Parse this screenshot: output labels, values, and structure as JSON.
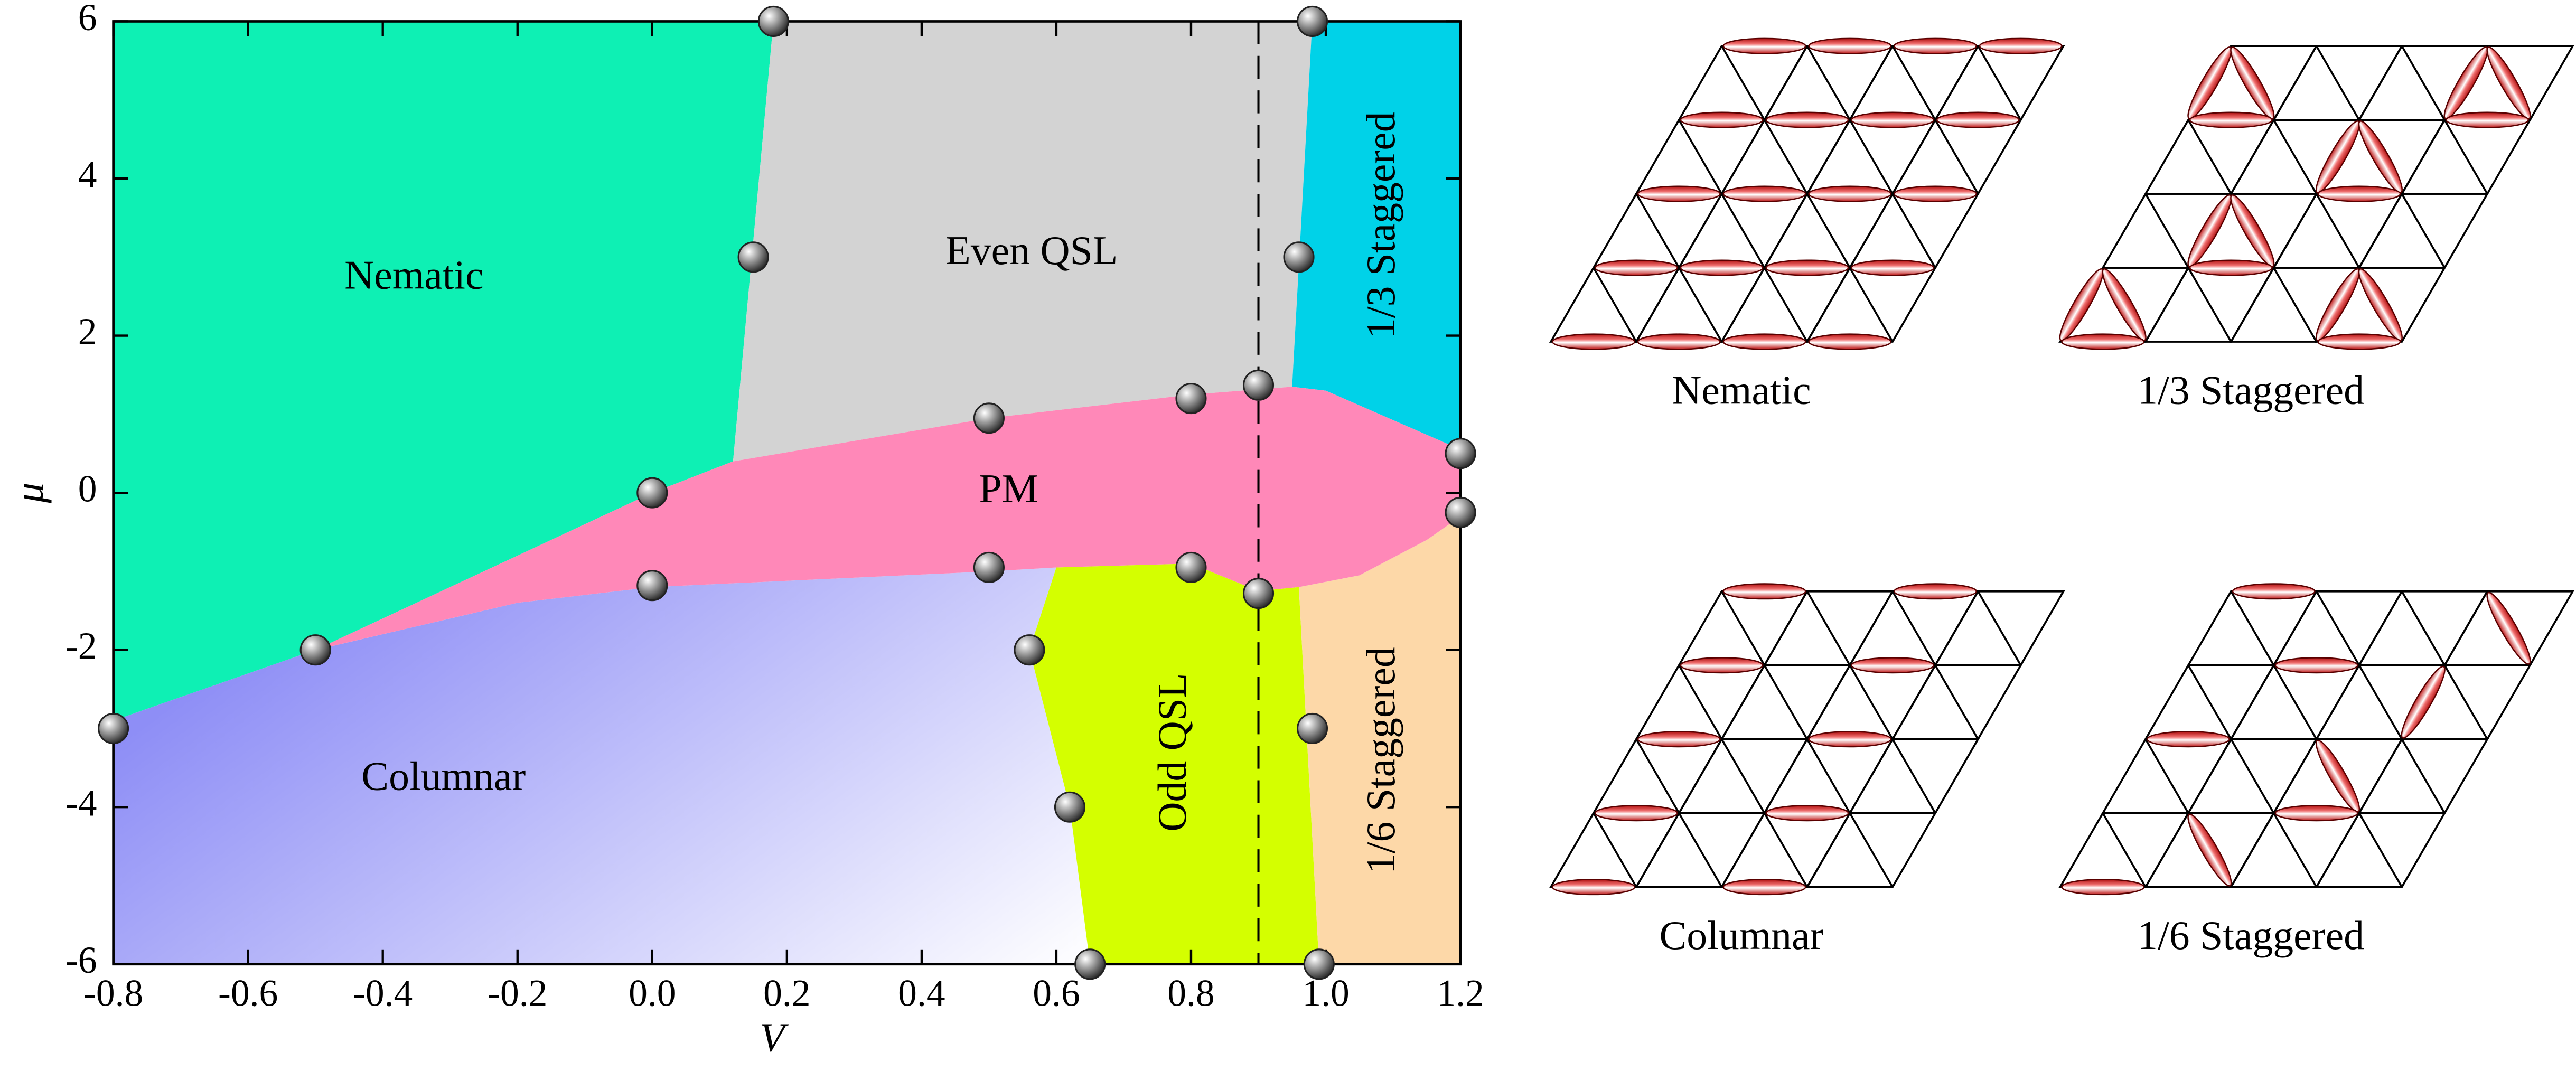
{
  "chart_data": {
    "type": "phase",
    "xlabel": "V",
    "ylabel": "μ",
    "xlim": [
      -0.8,
      1.2
    ],
    "ylim": [
      -6,
      6
    ],
    "xticks": [
      -0.8,
      -0.6,
      -0.4,
      -0.2,
      {
        "value": 0,
        "label": "0.0"
      },
      0.2,
      0.4,
      0.6,
      0.8,
      {
        "value": 1,
        "label": "1.0"
      },
      1.2
    ],
    "yticks": [
      -6,
      -4,
      -2,
      0,
      2,
      4,
      6
    ],
    "vline_x": 0.9,
    "regions": [
      {
        "name": "Nematic",
        "color": "#0ef0b4",
        "x": [
          -0.8,
          0.18,
          0.12,
          0,
          -0.5,
          -0.8
        ],
        "y": [
          6,
          6,
          0.4,
          0,
          -2,
          -2.9
        ]
      },
      {
        "name": "Even QSL",
        "color": "#d3d3d3",
        "x": [
          0.18,
          0.98,
          0.95,
          0.8,
          0.5,
          0.12
        ],
        "y": [
          6,
          6,
          1.35,
          1.25,
          0.95,
          0.4
        ]
      },
      {
        "name": "1/3 Staggered",
        "color": "#00d2e8",
        "x": [
          0.98,
          1.2,
          1.2,
          1.0,
          0.95
        ],
        "y": [
          6,
          6,
          0.55,
          1.3,
          1.35
        ]
      },
      {
        "name": "Columnar",
        "color": "#8e8ef6",
        "x": [
          -0.8,
          -0.5,
          -0.2,
          0,
          0.5,
          0.6,
          0.56,
          0.62,
          0.65,
          -0.8
        ],
        "y": [
          -2.9,
          -2,
          -1.4,
          -1.2,
          -1.0,
          -0.95,
          -2,
          -4,
          -6,
          -6
        ]
      },
      {
        "name": "Odd QSL",
        "color": "#d4ff00",
        "x": [
          0.6,
          0.8,
          0.9,
          0.96,
          0.99,
          0.65,
          0.62,
          0.56
        ],
        "y": [
          -0.95,
          -0.9,
          -1.25,
          -1.2,
          -6,
          -6,
          -4,
          -2
        ]
      },
      {
        "name": "1/6 Staggered",
        "color": "#fdd8a8",
        "x": [
          0.96,
          1.05,
          1.15,
          1.2,
          1.2,
          0.99
        ],
        "y": [
          -1.2,
          -1.05,
          -0.6,
          -0.3,
          -6,
          -6
        ]
      },
      {
        "name": "PM",
        "color": "#ff88b8",
        "x": [
          -0.5,
          0,
          0.12,
          0.5,
          0.8,
          0.95,
          1.0,
          1.2,
          1.2,
          1.15,
          1.05,
          0.96,
          0.9,
          0.8,
          0.6,
          0.5,
          0,
          -0.2
        ],
        "y": [
          -2,
          0,
          0.4,
          0.95,
          1.25,
          1.35,
          1.3,
          0.55,
          -0.3,
          -0.6,
          -1.05,
          -1.2,
          -1.25,
          -0.9,
          -0.95,
          -1.0,
          -1.2,
          -1.4
        ]
      }
    ],
    "points": {
      "x": [
        0.18,
        0.98,
        0.15,
        0.96,
        0.9,
        0.8,
        0.5,
        1.2,
        0,
        1.2,
        0.5,
        0.8,
        0.9,
        0,
        -0.5,
        0.56,
        -0.8,
        0.98,
        0.62,
        0.65,
        0.99
      ],
      "y": [
        6,
        6,
        3,
        3,
        1.37,
        1.2,
        0.95,
        0.5,
        0,
        -0.25,
        -0.95,
        -0.95,
        -1.28,
        -1.18,
        -2,
        -2,
        -3,
        -3,
        -4,
        -6,
        -6
      ]
    },
    "panels": [
      "Nematic",
      "1/3 Staggered",
      "Columnar",
      "1/6 Staggered"
    ]
  }
}
